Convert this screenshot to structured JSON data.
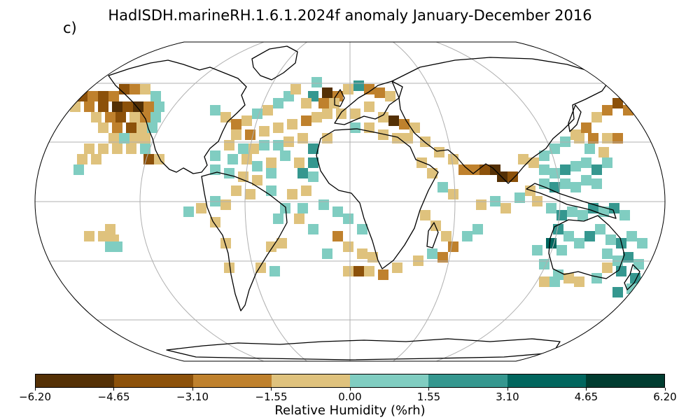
{
  "map": {
    "title": "HadISDH.marineRH.1.6.1.2024f anomaly January-December 2016",
    "panel_label": "c)",
    "projection": "Robinson",
    "gridlines": true,
    "colors": {
      "bins": [
        "#543005",
        "#8c510a",
        "#bf812d",
        "#dfc27d",
        "#80cdc1",
        "#35978f",
        "#01665e",
        "#003c30"
      ],
      "land_outline": "#000000",
      "grid": "#b0b0b0"
    },
    "colorbar": {
      "ticks": [
        "−6.20",
        "−4.65",
        "−3.10",
        "−1.55",
        "0.00",
        "1.55",
        "3.10",
        "4.65",
        "6.20"
      ],
      "label": "Relative Humidity (%rh)"
    }
  }
}
